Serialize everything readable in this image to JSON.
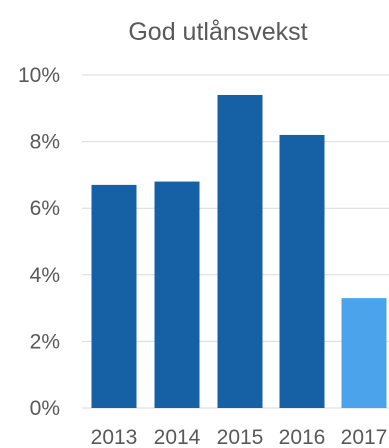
{
  "chart_data": {
    "type": "bar",
    "title": "God utlånsvekst",
    "xlabel": "",
    "ylabel": "",
    "categories": [
      "2013",
      "2014",
      "2015",
      "2016",
      "2017"
    ],
    "values": [
      6.7,
      6.8,
      9.4,
      8.2,
      3.3
    ],
    "ylim": [
      0,
      10
    ],
    "yticks": [
      0,
      2,
      4,
      6,
      8,
      10
    ],
    "ytick_labels": [
      "0%",
      "2%",
      "4%",
      "6%",
      "8%",
      "10%"
    ],
    "grid": true,
    "legend": "none",
    "colors": {
      "bar": "#1660a5",
      "highlight_bar": "#4ba3ec",
      "grid": "#d9d9d9",
      "text": "#595959"
    },
    "highlight_index": 4
  }
}
